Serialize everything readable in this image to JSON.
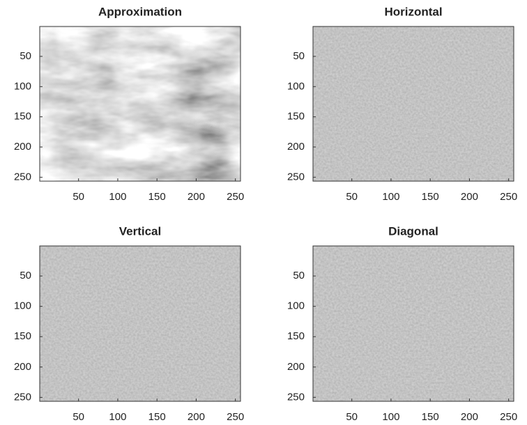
{
  "chart_data": [
    {
      "type": "image",
      "title": "Approximation",
      "xlim": [
        0.5,
        256.5
      ],
      "ylim": [
        0.5,
        256.5
      ],
      "xticks": [
        50,
        100,
        150,
        200,
        250
      ],
      "yticks": [
        50,
        100,
        150,
        200,
        250
      ],
      "colormap": "gray"
    },
    {
      "type": "image",
      "title": "Horizontal",
      "xlim": [
        0.5,
        256.5
      ],
      "ylim": [
        0.5,
        256.5
      ],
      "xticks": [
        50,
        100,
        150,
        200,
        250
      ],
      "yticks": [
        50,
        100,
        150,
        200,
        250
      ],
      "colormap": "gray"
    },
    {
      "type": "image",
      "title": "Vertical",
      "xlim": [
        0.5,
        256.5
      ],
      "ylim": [
        0.5,
        256.5
      ],
      "xticks": [
        50,
        100,
        150,
        200,
        250
      ],
      "yticks": [
        50,
        100,
        150,
        200,
        250
      ],
      "colormap": "gray"
    },
    {
      "type": "image",
      "title": "Diagonal",
      "xlim": [
        0.5,
        256.5
      ],
      "ylim": [
        0.5,
        256.5
      ],
      "xticks": [
        50,
        100,
        150,
        200,
        250
      ],
      "yticks": [
        50,
        100,
        150,
        200,
        250
      ],
      "colormap": "gray"
    }
  ]
}
